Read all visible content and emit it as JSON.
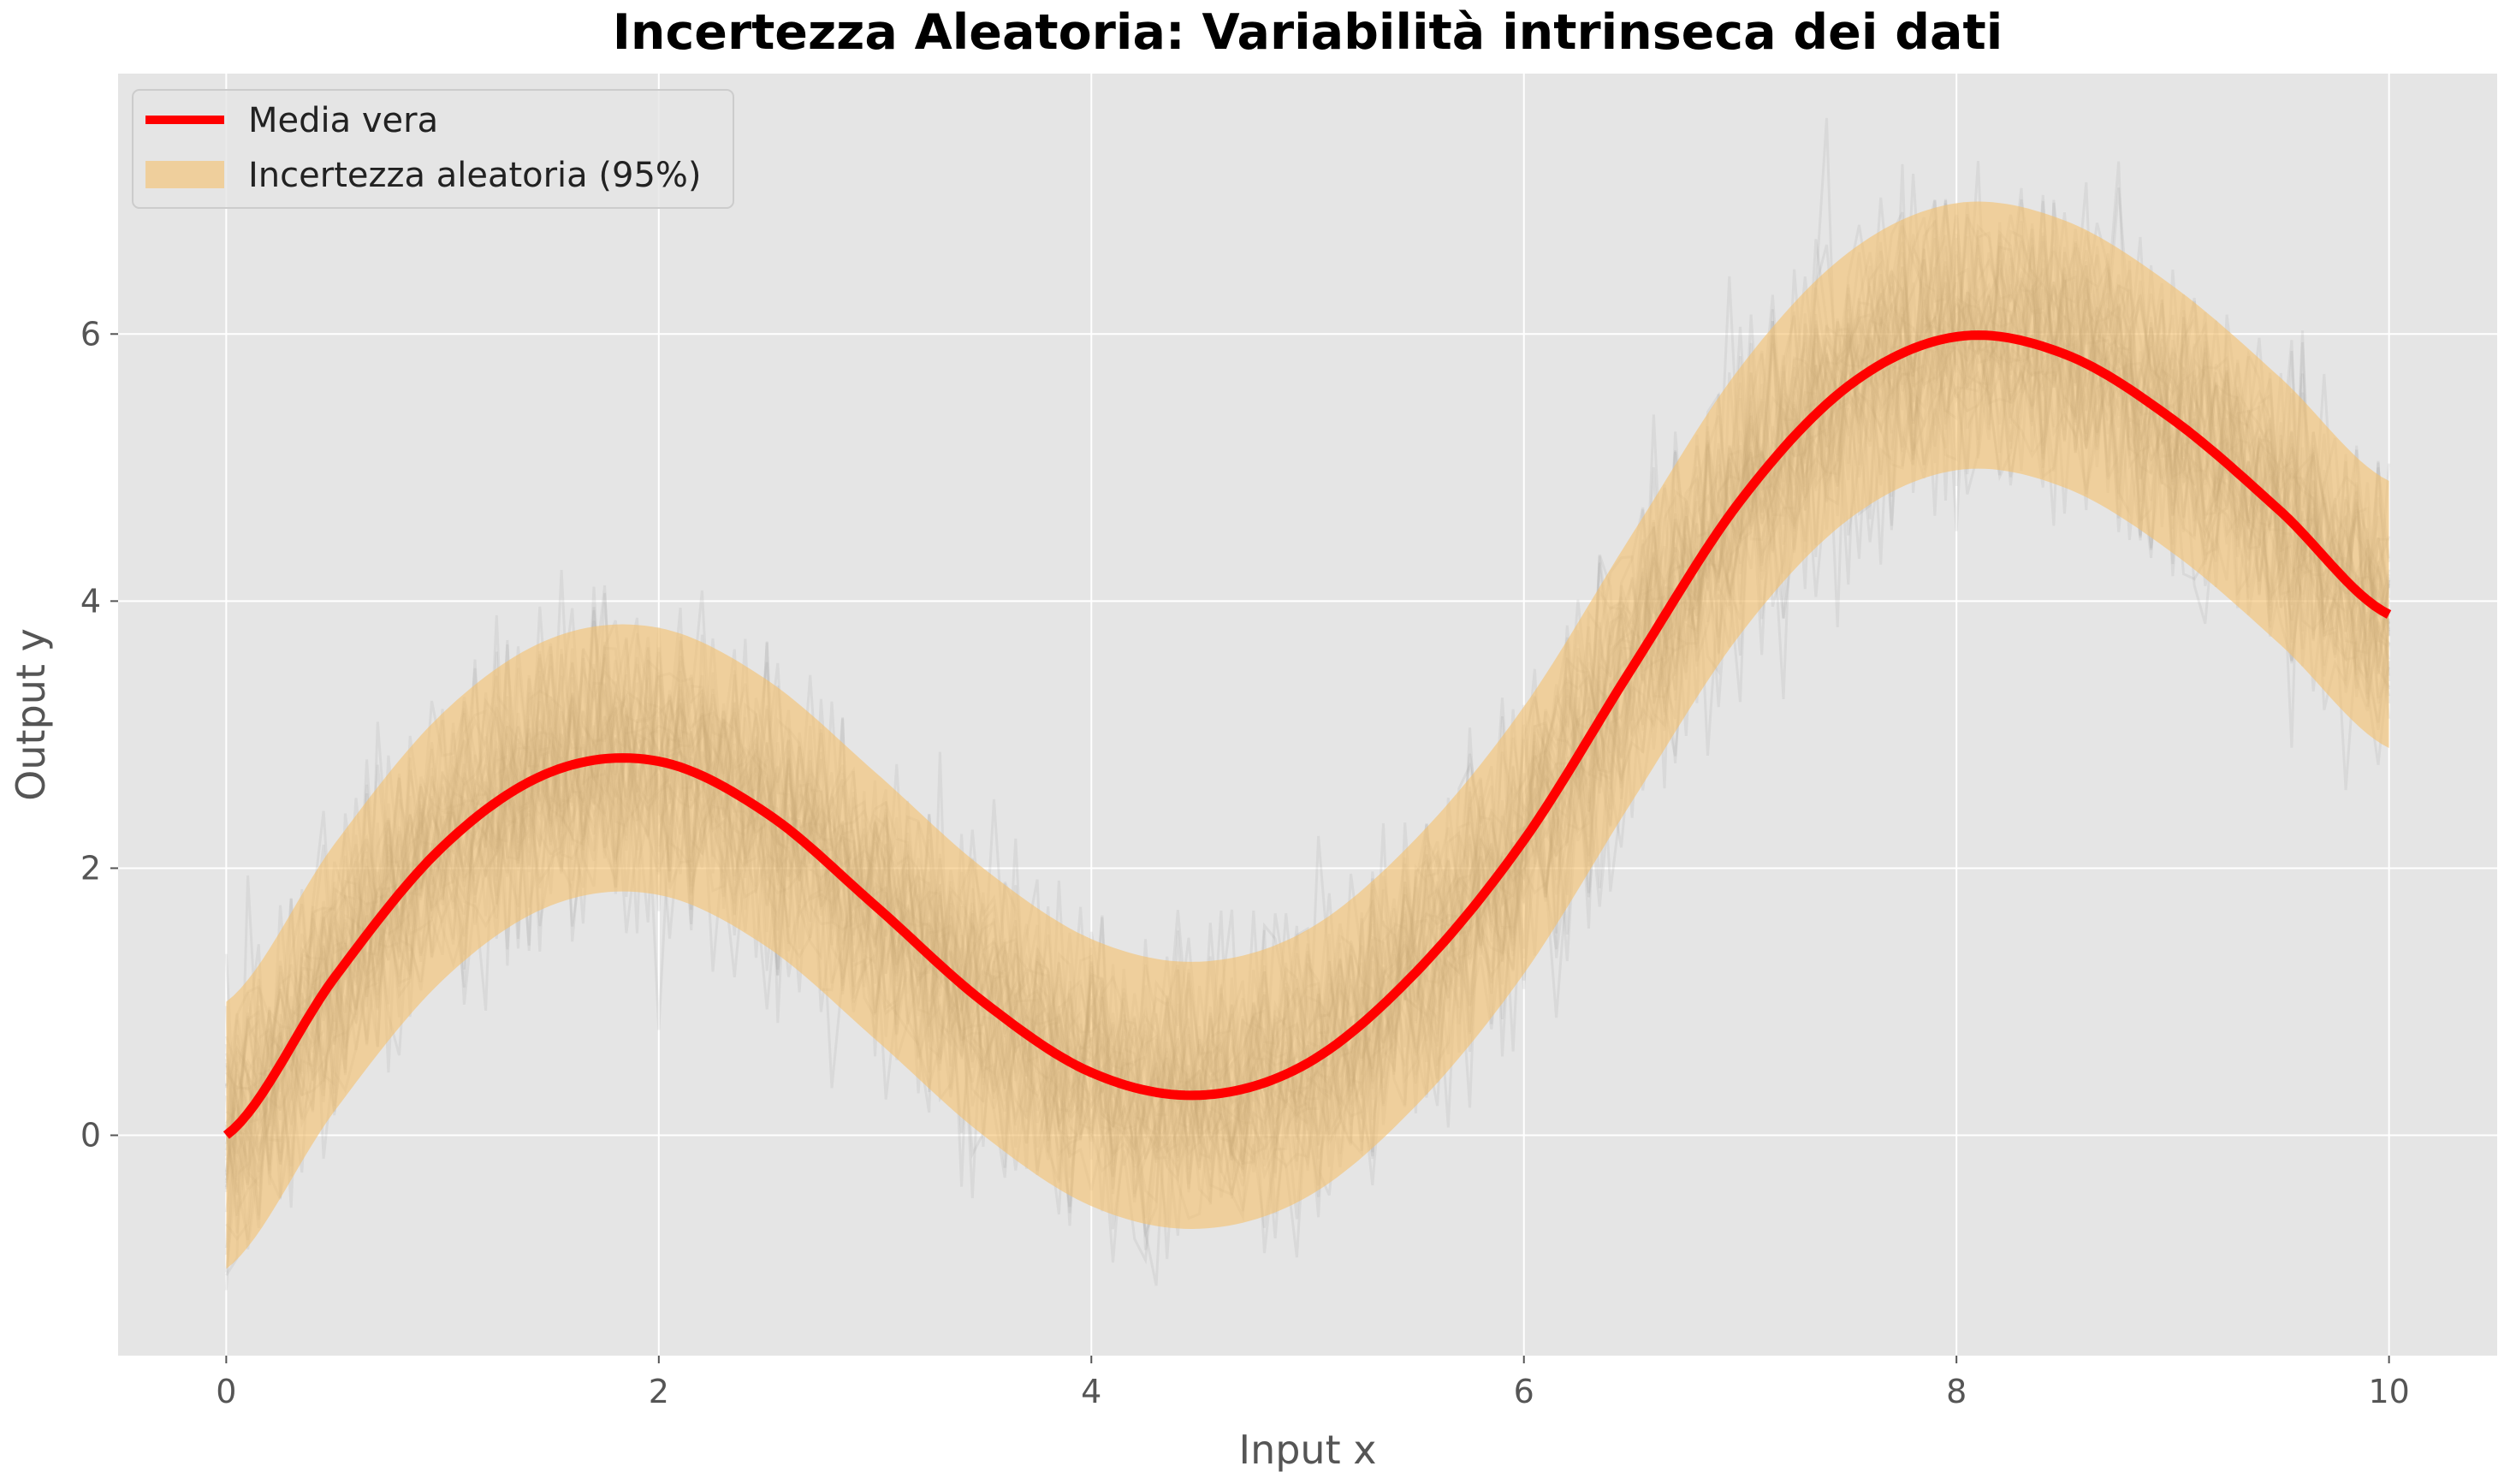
{
  "chart_data": {
    "type": "line",
    "title": "Incertezza Aleatoria: Variabilità intrinseca dei dati",
    "xlabel": "Input x",
    "ylabel": "Output y",
    "xlim": [
      -0.5,
      10.5
    ],
    "ylim": [
      -1.65,
      7.95
    ],
    "xticks": [
      0,
      2,
      4,
      6,
      8,
      10
    ],
    "yticks": [
      0,
      2,
      4,
      6
    ],
    "grid": true,
    "legend": {
      "placement": "top-left"
    },
    "series": [
      {
        "name": "Media vera",
        "role": "line",
        "color": "#ff0000",
        "x": [
          0,
          0.5,
          1.0,
          1.5,
          2.0,
          2.5,
          3.0,
          3.5,
          4.0,
          4.5,
          5.0,
          5.5,
          6.0,
          6.5,
          7.0,
          7.5,
          8.0,
          8.5,
          9.0,
          9.5,
          10.0
        ],
        "y": [
          0.0,
          1.18,
          2.16,
          2.72,
          2.8,
          2.41,
          1.72,
          1.0,
          0.47,
          0.3,
          0.54,
          1.22,
          2.21,
          3.5,
          4.75,
          5.61,
          5.98,
          5.85,
          5.36,
          4.67,
          3.9
        ]
      },
      {
        "name": "Incertezza aleatoria (95%)",
        "role": "band",
        "color": "#f5c06a",
        "half_width": 1.0
      }
    ],
    "noise_samples": {
      "count": 40,
      "sigma": 0.5,
      "color": "#808080"
    }
  }
}
